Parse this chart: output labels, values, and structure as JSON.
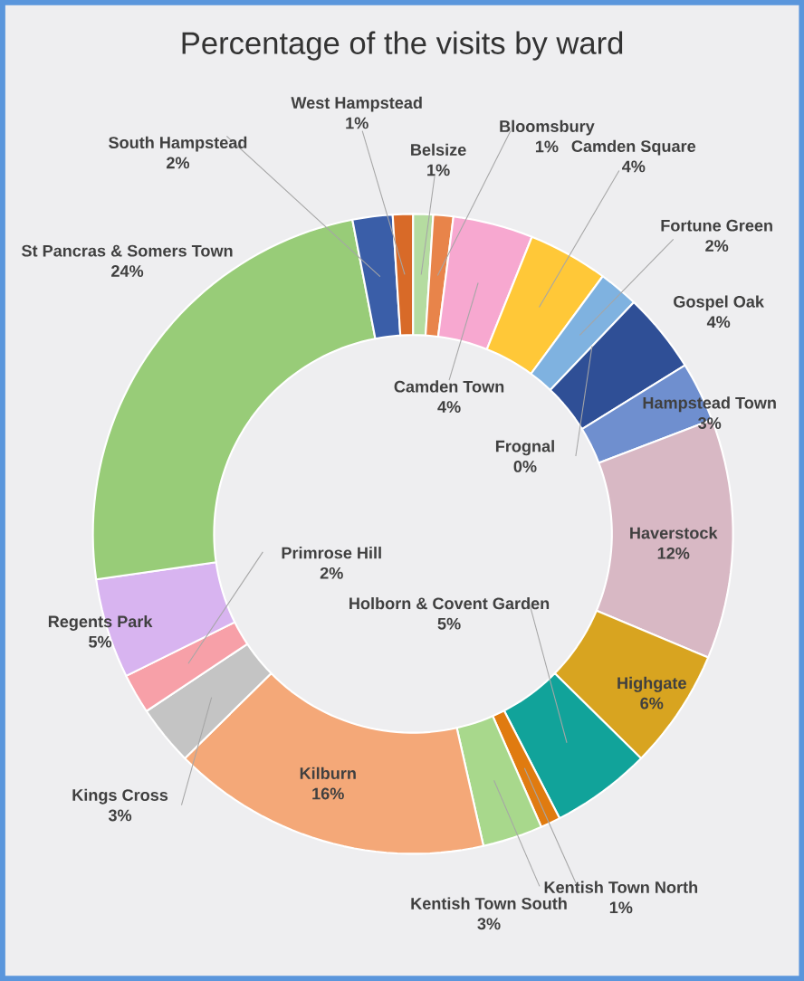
{
  "chart_data": {
    "type": "donut",
    "title": "Percentage of the visits by ward",
    "categories": [
      "Belsize",
      "Bloomsbury",
      "Camden Town",
      "Camden Square",
      "Fortune Green",
      "Frognal",
      "Gospel Oak",
      "Hampstead Town",
      "Haverstock",
      "Highgate",
      "Holborn & Covent Garden",
      "Kentish Town North",
      "Kentish Town South",
      "Kilburn",
      "Kings Cross",
      "Primrose Hill",
      "Regents Park",
      "St Pancras & Somers Town",
      "South Hampstead",
      "West Hampstead"
    ],
    "values": [
      1,
      1,
      4,
      4,
      2,
      0,
      4,
      3,
      12,
      6,
      5,
      1,
      3,
      16,
      3,
      2,
      5,
      24,
      2,
      1
    ],
    "value_labels": [
      "1%",
      "1%",
      "4%",
      "4%",
      "2%",
      "0%",
      "4%",
      "3%",
      "12%",
      "6%",
      "5%",
      "1%",
      "3%",
      "16%",
      "3%",
      "2%",
      "5%",
      "24%",
      "2%",
      "1%"
    ],
    "colors": [
      "#b5dca0",
      "#e8844a",
      "#f7a8d0",
      "#ffc838",
      "#7fb2e0",
      "#3a5ea8",
      "#2f4f96",
      "#6f8fcf",
      "#d8b8c4",
      "#d8a420",
      "#11a39a",
      "#e07b10",
      "#a8d88c",
      "#f4a878",
      "#c4c4c4",
      "#f7a0a8",
      "#d8b4f0",
      "#98cc78",
      "#3a5ea8",
      "#d86a28"
    ]
  }
}
